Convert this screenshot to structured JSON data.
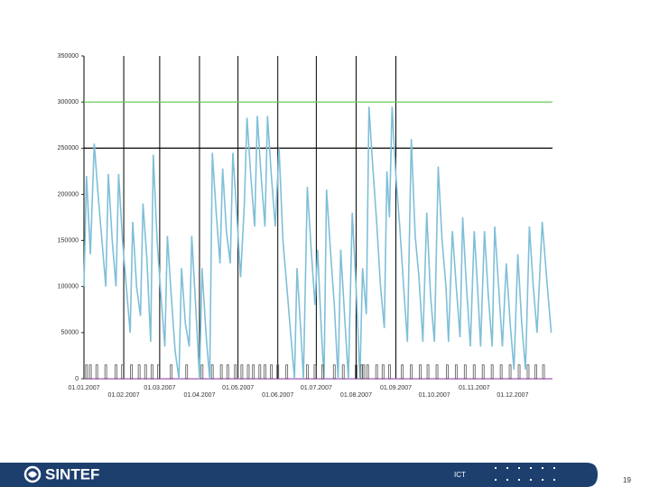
{
  "chart_data": {
    "type": "line",
    "x_ticks_note_free": null,
    "xlim": [
      0,
      365
    ],
    "xticks": [
      {
        "value": 0,
        "label": "01.01.2007"
      },
      {
        "value": 31,
        "label": "01.02.2007"
      },
      {
        "value": 59,
        "label": "01.03.2007"
      },
      {
        "value": 90,
        "label": "01.04.2007"
      },
      {
        "value": 120,
        "label": "01.05.2007"
      },
      {
        "value": 151,
        "label": "01.06.2007"
      },
      {
        "value": 181,
        "label": "01.07.2007"
      },
      {
        "value": 212,
        "label": "01.08.2007"
      },
      {
        "value": 243,
        "label": "01.09.2007"
      },
      {
        "value": 273,
        "label": "01.10.2007"
      },
      {
        "value": 304,
        "label": "01.11.2007"
      },
      {
        "value": 334,
        "label": "01.12.2007"
      }
    ],
    "xgrid_ticks": [
      1,
      2,
      3,
      4,
      5,
      6,
      7,
      8
    ],
    "ylim": [
      0,
      350000
    ],
    "yticks": [
      0,
      50000,
      100000,
      150000,
      200000,
      250000,
      300000,
      350000
    ],
    "reference_lines": [
      {
        "value": 300000,
        "color": "#66cc55"
      },
      {
        "value": 250000,
        "color": "#000000"
      },
      {
        "value": 0,
        "color": "#aa55bb"
      }
    ],
    "series": [
      {
        "color": "#7fbfd8",
        "style": "line",
        "x": [
          0,
          2,
          5,
          8,
          11,
          14,
          17,
          19,
          22,
          25,
          27,
          30,
          33,
          36,
          38,
          41,
          44,
          46,
          49,
          52,
          54,
          57,
          60,
          63,
          65,
          68,
          71,
          74,
          76,
          79,
          82,
          84,
          87,
          90,
          92,
          95,
          98,
          100,
          103,
          106,
          108,
          111,
          114,
          116,
          119,
          122,
          125,
          127,
          130,
          133,
          135,
          138,
          141,
          143,
          146,
          149,
          152,
          155,
          158,
          161,
          164,
          166,
          169,
          171,
          174,
          177,
          180,
          182,
          185,
          187,
          189,
          192,
          195,
          198,
          200,
          203,
          206,
          209,
          212,
          215,
          217,
          220,
          222,
          225,
          228,
          231,
          234,
          236,
          238,
          240,
          243,
          246,
          249,
          252,
          255,
          258,
          261,
          264,
          267,
          270,
          273,
          276,
          279,
          282,
          284,
          287,
          290,
          293,
          295,
          298,
          301,
          304,
          307,
          309,
          312,
          315,
          318,
          320,
          323,
          326,
          329,
          332,
          335,
          338,
          341,
          344,
          347,
          350,
          353,
          357,
          361,
          364
        ],
        "values": [
          100000,
          220000,
          135000,
          255000,
          200000,
          150000,
          100000,
          222000,
          150000,
          100000,
          222000,
          150000,
          100000,
          50000,
          170000,
          100000,
          68000,
          190000,
          130000,
          40000,
          243000,
          150000,
          90000,
          35000,
          155000,
          90000,
          30000,
          0,
          120000,
          60000,
          35000,
          155000,
          80000,
          0,
          120000,
          50000,
          0,
          245000,
          180000,
          125000,
          228000,
          160000,
          125000,
          245000,
          180000,
          110000,
          190000,
          283000,
          220000,
          165000,
          285000,
          220000,
          165000,
          285000,
          220000,
          165000,
          250000,
          150000,
          100000,
          50000,
          0,
          120000,
          50000,
          0,
          208000,
          140000,
          80000,
          140000,
          50000,
          0,
          205000,
          140000,
          80000,
          0,
          140000,
          70000,
          0,
          180000,
          100000,
          0,
          120000,
          70000,
          295000,
          230000,
          170000,
          100000,
          55000,
          225000,
          175000,
          295000,
          220000,
          165000,
          100000,
          40000,
          260000,
          155000,
          110000,
          40000,
          180000,
          90000,
          40000,
          230000,
          150000,
          100000,
          40000,
          160000,
          100000,
          45000,
          175000,
          100000,
          35000,
          160000,
          90000,
          35000,
          160000,
          90000,
          35000,
          165000,
          100000,
          35000,
          125000,
          60000,
          10000,
          135000,
          60000,
          10000,
          165000,
          100000,
          50000,
          170000,
          100000,
          50000
        ]
      },
      {
        "color": "#555555",
        "style": "spikes",
        "x": [
          2,
          5,
          10,
          17,
          25,
          30,
          37,
          43,
          48,
          53,
          58,
          68,
          80,
          92,
          100,
          107,
          112,
          118,
          123,
          128,
          132,
          137,
          141,
          146,
          151,
          158,
          174,
          180,
          186,
          195,
          202,
          212,
          216,
          218,
          221,
          228,
          233,
          238,
          248,
          255,
          262,
          268,
          275,
          283,
          290,
          297,
          304,
          311,
          318,
          325,
          332,
          339,
          346,
          352,
          358
        ],
        "values": [
          15000,
          15000,
          15000,
          15000,
          15000,
          15000,
          15000,
          15000,
          15000,
          15000,
          15000,
          15000,
          15000,
          15000,
          15000,
          15000,
          15000,
          15000,
          15000,
          15000,
          15000,
          15000,
          15000,
          15000,
          15000,
          15000,
          15000,
          15000,
          15000,
          15000,
          15000,
          15000,
          15000,
          15000,
          15000,
          15000,
          15000,
          15000,
          15000,
          15000,
          15000,
          15000,
          15000,
          15000,
          15000,
          15000,
          15000,
          15000,
          15000,
          15000,
          15000,
          15000,
          15000,
          15000,
          15000
        ]
      }
    ]
  },
  "footer": {
    "logo": "SINTEF",
    "label": "ICT",
    "page": "19"
  }
}
